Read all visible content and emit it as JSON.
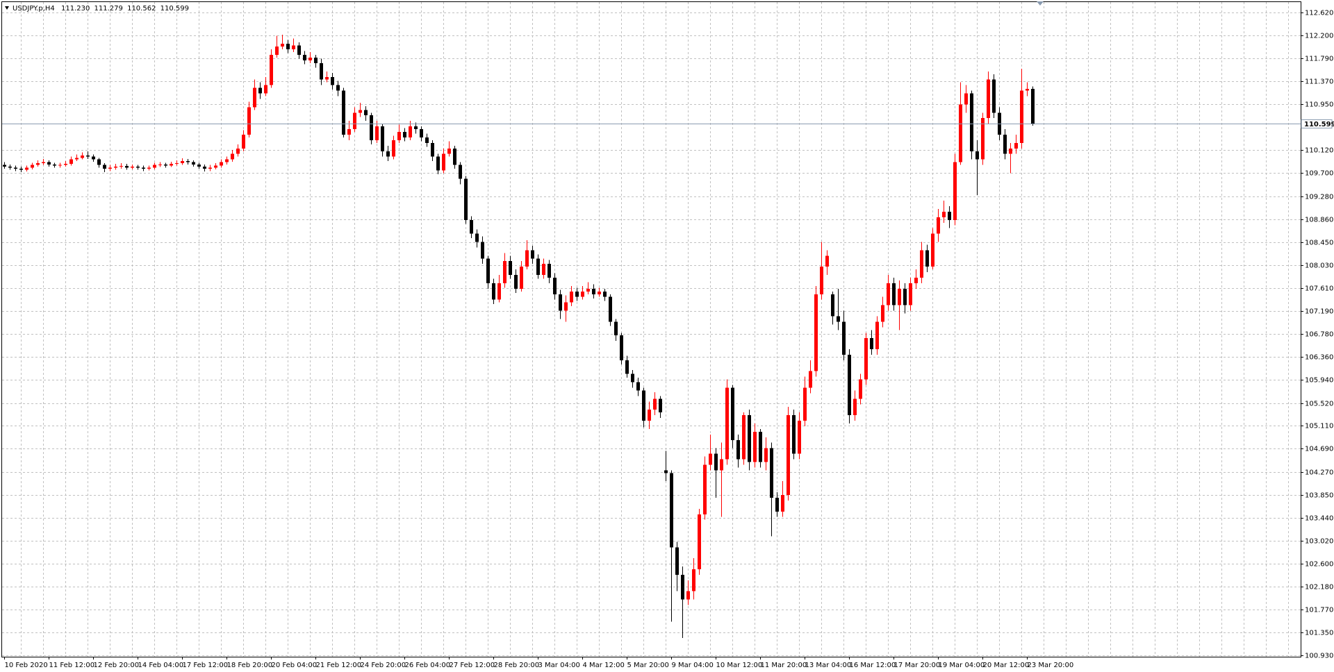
{
  "chart_data": {
    "type": "candlestick",
    "info": {
      "symbol": "USDJPY.p,H4",
      "values": [
        "111.230",
        "111.279",
        "110.562",
        "110.599"
      ]
    },
    "up_color": "#ff0000",
    "down_color": "#000000",
    "grid": true,
    "ylim": [
      100.91,
      112.81
    ],
    "yticks": [
      {
        "value": 112.62,
        "label": "112.620"
      },
      {
        "value": 112.2,
        "label": "112.200"
      },
      {
        "value": 111.79,
        "label": "111.790"
      },
      {
        "value": 111.37,
        "label": "111.370"
      },
      {
        "value": 110.95,
        "label": "110.950"
      },
      {
        "value": 110.12,
        "label": "110.120"
      },
      {
        "value": 109.7,
        "label": "109.700"
      },
      {
        "value": 109.28,
        "label": "109.280"
      },
      {
        "value": 108.86,
        "label": "108.860"
      },
      {
        "value": 108.45,
        "label": "108.450"
      },
      {
        "value": 108.03,
        "label": "108.030"
      },
      {
        "value": 107.61,
        "label": "107.610"
      },
      {
        "value": 107.19,
        "label": "107.190"
      },
      {
        "value": 106.78,
        "label": "106.780"
      },
      {
        "value": 106.36,
        "label": "106.360"
      },
      {
        "value": 105.94,
        "label": "105.940"
      },
      {
        "value": 105.52,
        "label": "105.520"
      },
      {
        "value": 105.11,
        "label": "105.110"
      },
      {
        "value": 104.69,
        "label": "104.690"
      },
      {
        "value": 104.27,
        "label": "104.270"
      },
      {
        "value": 103.85,
        "label": "103.850"
      },
      {
        "value": 103.44,
        "label": "103.440"
      },
      {
        "value": 103.02,
        "label": "103.020"
      },
      {
        "value": 102.6,
        "label": "102.600"
      },
      {
        "value": 102.18,
        "label": "102.180"
      },
      {
        "value": 101.77,
        "label": "101.770"
      },
      {
        "value": 101.35,
        "label": "101.350"
      },
      {
        "value": 100.93,
        "label": "100.930"
      }
    ],
    "bid": {
      "value": 110.599,
      "label": "110.599"
    },
    "categories": [
      "10 Feb 2020",
      null,
      null,
      null,
      null,
      null,
      null,
      null,
      "11 Feb 12:00",
      null,
      null,
      null,
      null,
      null,
      null,
      null,
      "12 Feb 20:00",
      null,
      null,
      null,
      null,
      null,
      null,
      null,
      "14 Feb 04:00",
      null,
      null,
      null,
      null,
      null,
      null,
      null,
      "17 Feb 12:00",
      null,
      null,
      null,
      null,
      null,
      null,
      null,
      "18 Feb 20:00",
      null,
      null,
      null,
      null,
      null,
      null,
      null,
      "20 Feb 04:00",
      null,
      null,
      null,
      null,
      null,
      null,
      null,
      "21 Feb 12:00",
      null,
      null,
      null,
      null,
      null,
      null,
      null,
      "24 Feb 20:00",
      null,
      null,
      null,
      null,
      null,
      null,
      null,
      "26 Feb 04:00",
      null,
      null,
      null,
      null,
      null,
      null,
      null,
      "27 Feb 12:00",
      null,
      null,
      null,
      null,
      null,
      null,
      null,
      "28 Feb 20:00",
      null,
      null,
      null,
      null,
      null,
      null,
      null,
      "3 Mar 04:00",
      null,
      null,
      null,
      null,
      null,
      null,
      null,
      "4 Mar 12:00",
      null,
      null,
      null,
      null,
      null,
      null,
      null,
      "5 Mar 20:00",
      null,
      null,
      null,
      null,
      null,
      null,
      null,
      "9 Mar 04:00",
      null,
      null,
      null,
      null,
      null,
      null,
      null,
      "10 Mar 12:00",
      null,
      null,
      null,
      null,
      null,
      null,
      null,
      "11 Mar 20:00",
      null,
      null,
      null,
      null,
      null,
      null,
      null,
      "13 Mar 04:00",
      null,
      null,
      null,
      null,
      null,
      null,
      null,
      "16 Mar 12:00",
      null,
      null,
      null,
      null,
      null,
      null,
      null,
      "17 Mar 20:00",
      null,
      null,
      null,
      null,
      null,
      null,
      null,
      "19 Mar 04:00",
      null,
      null,
      null,
      null,
      null,
      null,
      null,
      "20 Mar 12:00",
      null,
      null,
      null,
      null,
      null,
      null,
      null,
      "23 Mar 20:00",
      null
    ],
    "open": [
      109.85,
      109.82,
      109.8,
      109.78,
      109.76,
      109.8,
      109.85,
      109.88,
      109.9,
      109.86,
      109.84,
      109.85,
      109.87,
      109.95,
      109.98,
      110.02,
      110.0,
      109.95,
      109.85,
      109.78,
      109.8,
      109.82,
      109.83,
      109.8,
      109.82,
      109.8,
      109.78,
      109.8,
      109.85,
      109.86,
      109.84,
      109.87,
      109.88,
      109.92,
      109.9,
      109.86,
      109.82,
      109.78,
      109.8,
      109.84,
      109.9,
      109.95,
      110.05,
      110.15,
      110.4,
      110.9,
      111.25,
      111.15,
      111.3,
      111.85,
      112.0,
      112.05,
      111.95,
      112.02,
      111.85,
      111.75,
      111.8,
      111.7,
      111.4,
      111.45,
      111.3,
      111.2,
      110.4,
      110.5,
      110.8,
      110.85,
      110.75,
      110.3,
      110.55,
      110.1,
      110.0,
      110.3,
      110.45,
      110.35,
      110.55,
      110.5,
      110.35,
      110.25,
      110.0,
      109.75,
      110.05,
      110.15,
      109.85,
      109.6,
      108.85,
      108.6,
      108.45,
      108.15,
      107.7,
      107.4,
      107.7,
      108.1,
      107.85,
      107.6,
      108.0,
      108.3,
      108.15,
      107.85,
      108.05,
      107.8,
      107.5,
      107.2,
      107.35,
      107.55,
      107.45,
      107.55,
      107.6,
      107.5,
      107.55,
      107.45,
      107.0,
      106.75,
      106.3,
      106.05,
      105.9,
      105.75,
      105.2,
      105.4,
      105.6,
      104.3,
      104.25,
      102.9,
      102.4,
      101.95,
      102.1,
      102.5,
      103.5,
      104.4,
      104.6,
      104.3,
      104.5,
      105.8,
      104.85,
      104.5,
      105.3,
      104.45,
      105.0,
      104.45,
      104.7,
      103.8,
      103.55,
      103.85,
      105.3,
      104.6,
      105.2,
      105.8,
      106.1,
      107.5,
      108.0,
      107.5,
      107.1,
      107.0,
      106.4,
      105.3,
      105.6,
      105.95,
      106.7,
      106.5,
      107.0,
      107.3,
      107.7,
      107.3,
      107.6,
      107.3,
      107.7,
      107.8,
      108.3,
      108.0,
      108.6,
      108.9,
      109.0,
      108.85,
      109.9,
      110.95,
      111.15,
      110.1,
      109.95,
      110.7,
      111.4,
      110.8,
      110.4,
      110.05,
      110.15,
      110.25,
      111.2,
      111.23
    ],
    "high": [
      109.9,
      109.86,
      109.84,
      109.82,
      109.84,
      109.89,
      109.93,
      109.96,
      109.93,
      109.89,
      109.89,
      109.92,
      110.0,
      110.04,
      110.08,
      110.1,
      110.04,
      109.98,
      109.88,
      109.85,
      109.87,
      109.88,
      109.87,
      109.86,
      109.85,
      109.84,
      109.84,
      109.89,
      109.9,
      109.89,
      109.91,
      109.93,
      109.97,
      109.96,
      109.93,
      109.89,
      109.86,
      109.85,
      109.88,
      109.95,
      110.0,
      110.12,
      110.22,
      110.48,
      111.0,
      111.4,
      111.35,
      111.45,
      111.95,
      112.2,
      112.22,
      112.12,
      112.15,
      112.08,
      111.92,
      111.9,
      111.85,
      111.78,
      111.55,
      111.52,
      111.38,
      111.25,
      110.65,
      110.9,
      110.98,
      110.92,
      110.8,
      110.65,
      110.6,
      110.2,
      110.38,
      110.58,
      110.52,
      110.65,
      110.62,
      110.55,
      110.42,
      110.3,
      110.05,
      110.15,
      110.28,
      110.2,
      109.9,
      109.65,
      108.92,
      108.68,
      108.55,
      108.2,
      107.78,
      107.85,
      108.25,
      108.2,
      107.95,
      108.1,
      108.48,
      108.38,
      108.22,
      108.15,
      108.12,
      107.88,
      107.58,
      107.48,
      107.65,
      107.62,
      107.65,
      107.72,
      107.68,
      107.62,
      107.6,
      107.5,
      107.05,
      106.8,
      106.38,
      106.12,
      105.98,
      105.8,
      105.55,
      105.72,
      105.65,
      104.65,
      104.3,
      103.0,
      102.55,
      102.3,
      102.7,
      103.6,
      104.55,
      104.95,
      104.7,
      104.8,
      105.95,
      105.85,
      104.95,
      105.35,
      105.4,
      105.15,
      105.05,
      104.9,
      104.8,
      103.9,
      104.1,
      105.45,
      105.4,
      105.35,
      106.0,
      106.3,
      107.65,
      108.45,
      108.3,
      107.55,
      107.6,
      107.2,
      106.5,
      105.75,
      106.05,
      106.8,
      106.85,
      107.1,
      107.45,
      107.85,
      107.8,
      107.75,
      107.7,
      107.8,
      107.95,
      108.45,
      108.4,
      108.7,
      109.05,
      109.2,
      109.1,
      110.05,
      111.35,
      111.3,
      111.2,
      110.3,
      110.8,
      111.55,
      111.5,
      110.9,
      110.5,
      110.25,
      110.4,
      111.6,
      111.35,
      111.279
    ],
    "low": [
      109.78,
      109.76,
      109.74,
      109.72,
      109.73,
      109.77,
      109.82,
      109.85,
      109.82,
      109.8,
      109.8,
      109.82,
      109.84,
      109.92,
      109.95,
      109.96,
      109.91,
      109.8,
      109.72,
      109.74,
      109.76,
      109.78,
      109.76,
      109.77,
      109.76,
      109.74,
      109.75,
      109.77,
      109.81,
      109.8,
      109.81,
      109.84,
      109.85,
      109.86,
      109.82,
      109.78,
      109.73,
      109.74,
      109.77,
      109.8,
      109.86,
      109.91,
      110.0,
      110.1,
      110.35,
      110.85,
      111.05,
      111.1,
      111.25,
      111.8,
      111.95,
      111.88,
      111.9,
      111.78,
      111.68,
      111.7,
      111.62,
      111.3,
      111.35,
      111.22,
      111.1,
      110.35,
      110.3,
      110.45,
      110.72,
      110.65,
      110.22,
      110.25,
      110.0,
      109.92,
      109.95,
      110.25,
      110.28,
      110.3,
      110.42,
      110.28,
      110.18,
      109.92,
      109.68,
      109.7,
      110.0,
      109.78,
      109.5,
      108.78,
      108.52,
      108.35,
      108.05,
      107.6,
      107.32,
      107.35,
      107.62,
      107.78,
      107.52,
      107.55,
      107.95,
      108.05,
      107.78,
      107.78,
      107.7,
      107.4,
      107.05,
      107.0,
      107.28,
      107.38,
      107.4,
      107.5,
      107.42,
      107.45,
      107.38,
      106.92,
      106.65,
      106.22,
      105.98,
      105.8,
      105.65,
      105.08,
      105.05,
      105.3,
      105.25,
      104.1,
      101.55,
      102.1,
      101.25,
      101.85,
      101.95,
      102.4,
      103.4,
      104.3,
      103.8,
      103.45,
      104.4,
      104.7,
      104.35,
      104.4,
      104.3,
      104.35,
      104.35,
      104.3,
      103.1,
      103.45,
      103.45,
      103.75,
      104.5,
      104.5,
      105.1,
      105.7,
      106.0,
      107.4,
      107.85,
      106.95,
      106.85,
      106.3,
      105.15,
      105.2,
      105.5,
      105.85,
      106.4,
      106.4,
      106.9,
      107.2,
      107.2,
      106.85,
      107.15,
      107.2,
      107.6,
      107.7,
      107.9,
      107.95,
      108.45,
      108.8,
      108.7,
      108.75,
      109.85,
      110.8,
      109.95,
      109.3,
      109.85,
      110.6,
      110.7,
      110.3,
      109.95,
      109.7,
      110.05,
      110.15,
      111.1,
      110.562
    ],
    "close": [
      109.82,
      109.8,
      109.78,
      109.76,
      109.8,
      109.85,
      109.88,
      109.9,
      109.86,
      109.84,
      109.85,
      109.87,
      109.95,
      109.98,
      110.02,
      110.0,
      109.95,
      109.85,
      109.78,
      109.8,
      109.82,
      109.83,
      109.8,
      109.82,
      109.8,
      109.78,
      109.8,
      109.85,
      109.86,
      109.84,
      109.87,
      109.88,
      109.92,
      109.9,
      109.86,
      109.82,
      109.78,
      109.8,
      109.84,
      109.9,
      109.95,
      110.05,
      110.15,
      110.4,
      110.9,
      111.25,
      111.15,
      111.3,
      111.85,
      112.0,
      112.05,
      111.95,
      112.02,
      111.85,
      111.75,
      111.8,
      111.7,
      111.4,
      111.45,
      111.3,
      111.2,
      110.4,
      110.5,
      110.8,
      110.85,
      110.75,
      110.3,
      110.55,
      110.1,
      110.0,
      110.3,
      110.45,
      110.35,
      110.55,
      110.5,
      110.35,
      110.25,
      110.0,
      109.75,
      110.05,
      110.15,
      109.85,
      109.6,
      108.85,
      108.6,
      108.45,
      108.15,
      107.7,
      107.4,
      107.7,
      108.1,
      107.85,
      107.6,
      108.0,
      108.3,
      108.15,
      107.85,
      108.05,
      107.8,
      107.5,
      107.2,
      107.35,
      107.55,
      107.45,
      107.55,
      107.6,
      107.5,
      107.55,
      107.45,
      107.0,
      106.75,
      106.3,
      106.05,
      105.9,
      105.75,
      105.2,
      105.4,
      105.6,
      105.35,
      104.25,
      102.9,
      102.4,
      101.95,
      102.1,
      102.5,
      103.5,
      104.4,
      104.6,
      104.3,
      104.5,
      105.8,
      104.85,
      104.5,
      105.3,
      104.45,
      105.0,
      104.45,
      104.7,
      103.8,
      103.55,
      103.85,
      105.3,
      104.6,
      105.2,
      105.8,
      106.1,
      107.5,
      108.0,
      108.2,
      107.1,
      107.0,
      106.4,
      105.3,
      105.6,
      105.95,
      106.7,
      106.5,
      107.0,
      107.3,
      107.7,
      107.3,
      107.6,
      107.3,
      107.7,
      107.8,
      108.3,
      108.0,
      108.6,
      108.9,
      109.0,
      108.85,
      109.9,
      110.95,
      111.15,
      110.1,
      109.95,
      110.7,
      111.4,
      110.8,
      110.4,
      110.05,
      110.15,
      110.25,
      111.2,
      111.23,
      110.599
    ]
  }
}
